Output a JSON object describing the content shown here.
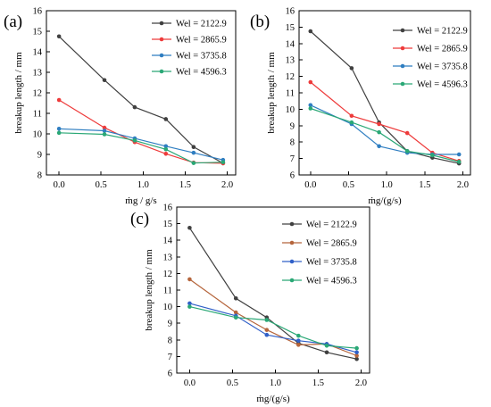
{
  "chart_data": [
    {
      "type": "line",
      "panel_label": "(a)",
      "xlabel": "ṁg / g/s",
      "ylabel": "breakup length / mm",
      "xlim": [
        -0.15,
        2.1
      ],
      "ylim": [
        8,
        16
      ],
      "xticks": [
        0.0,
        0.5,
        1.0,
        1.5,
        2.0
      ],
      "yticks": [
        8,
        9,
        10,
        11,
        12,
        13,
        14,
        15,
        16
      ],
      "legend_position": "top-right",
      "grid": false,
      "series": [
        {
          "name": "Wel = 2122.9",
          "color": "#404040",
          "x": [
            0.0,
            0.54,
            0.9,
            1.27,
            1.6,
            1.95
          ],
          "y": [
            14.75,
            12.62,
            11.3,
            10.72,
            9.36,
            8.57
          ]
        },
        {
          "name": "Wel = 2865.9",
          "color": "#ee3b3b",
          "x": [
            0.0,
            0.54,
            0.9,
            1.27,
            1.6,
            1.95
          ],
          "y": [
            11.65,
            10.3,
            9.6,
            9.03,
            8.6,
            8.57
          ]
        },
        {
          "name": "Wel = 3735.8",
          "color": "#2f7ec1",
          "x": [
            0.0,
            0.54,
            0.9,
            1.27,
            1.6,
            1.95
          ],
          "y": [
            10.25,
            10.15,
            9.78,
            9.4,
            9.08,
            8.73
          ]
        },
        {
          "name": "Wel = 4596.3",
          "color": "#2aa876",
          "x": [
            0.0,
            0.54,
            0.9,
            1.27,
            1.6,
            1.95
          ],
          "y": [
            10.05,
            9.98,
            9.68,
            9.25,
            8.58,
            8.62
          ]
        }
      ]
    },
    {
      "type": "line",
      "panel_label": "(b)",
      "xlabel": "ṁg/(g/s)",
      "ylabel": "breakup length / mm",
      "xlim": [
        -0.15,
        2.1
      ],
      "ylim": [
        6,
        16
      ],
      "xticks": [
        0.0,
        0.5,
        1.0,
        1.5,
        2.0
      ],
      "yticks": [
        6,
        7,
        8,
        9,
        10,
        11,
        12,
        13,
        14,
        15,
        16
      ],
      "legend_position": "top-right",
      "grid": false,
      "series": [
        {
          "name": "Wel = 2122.9",
          "color": "#404040",
          "x": [
            0.0,
            0.54,
            0.9,
            1.27,
            1.6,
            1.95
          ],
          "y": [
            14.75,
            12.5,
            9.2,
            7.45,
            7.05,
            6.7
          ]
        },
        {
          "name": "Wel = 2865.9",
          "color": "#ee3b3b",
          "x": [
            0.0,
            0.54,
            0.9,
            1.27,
            1.6,
            1.95
          ],
          "y": [
            11.65,
            9.6,
            9.1,
            8.55,
            7.35,
            6.85
          ]
        },
        {
          "name": "Wel = 3735.8",
          "color": "#2f7ec1",
          "x": [
            0.0,
            0.54,
            0.9,
            1.27,
            1.6,
            1.95
          ],
          "y": [
            10.25,
            9.1,
            7.75,
            7.35,
            7.25,
            7.25
          ]
        },
        {
          "name": "Wel = 4596.3",
          "color": "#2aa876",
          "x": [
            0.0,
            0.54,
            0.9,
            1.27,
            1.6,
            1.95
          ],
          "y": [
            10.05,
            9.2,
            8.6,
            7.45,
            7.2,
            6.8
          ]
        }
      ]
    },
    {
      "type": "line",
      "panel_label": "(c)",
      "xlabel": "ṁg/(g/s)",
      "ylabel": "breakup length / mm",
      "xlim": [
        -0.15,
        2.1
      ],
      "ylim": [
        6,
        16
      ],
      "xticks": [
        0.0,
        0.5,
        1.0,
        1.5,
        2.0
      ],
      "yticks": [
        6,
        7,
        8,
        9,
        10,
        11,
        12,
        13,
        14,
        15,
        16
      ],
      "legend_position": "top-right",
      "grid": false,
      "series": [
        {
          "name": "Wel = 2122.9",
          "color": "#404040",
          "x": [
            0.0,
            0.54,
            0.9,
            1.27,
            1.6,
            1.95
          ],
          "y": [
            14.75,
            10.5,
            9.35,
            7.8,
            7.25,
            6.85
          ]
        },
        {
          "name": "Wel = 2865.9",
          "color": "#b5653c",
          "x": [
            0.0,
            0.54,
            0.9,
            1.27,
            1.6,
            1.95
          ],
          "y": [
            11.65,
            9.65,
            8.6,
            7.7,
            7.75,
            7.05
          ]
        },
        {
          "name": "Wel = 3735.8",
          "color": "#3060c8",
          "x": [
            0.0,
            0.54,
            0.9,
            1.27,
            1.6,
            1.95
          ],
          "y": [
            10.2,
            9.45,
            8.3,
            7.95,
            7.75,
            7.25
          ]
        },
        {
          "name": "Wel = 4596.3",
          "color": "#2aa876",
          "x": [
            0.0,
            0.54,
            0.9,
            1.27,
            1.6,
            1.95
          ],
          "y": [
            10.0,
            9.35,
            9.2,
            8.25,
            7.65,
            7.5
          ]
        }
      ]
    }
  ]
}
